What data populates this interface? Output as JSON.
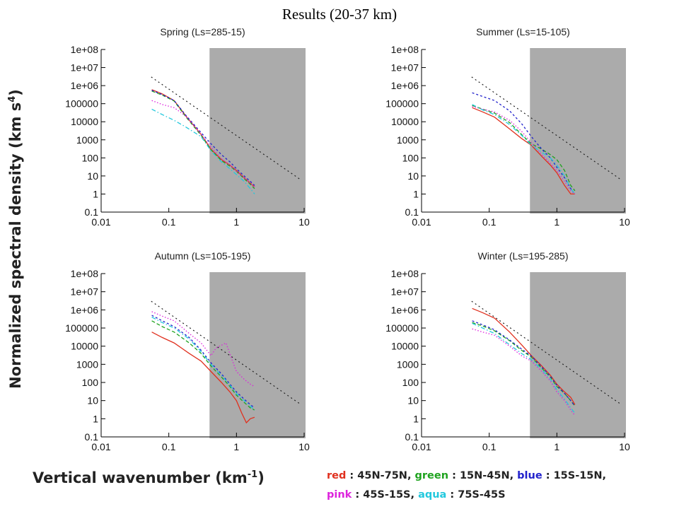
{
  "slide_title": "Results (20-37 km)",
  "ylabel_main": "Normalized spectral density (km s",
  "ylabel_sup": "4",
  "ylabel_end": ")",
  "xlabel_main": "Vertical wavenumber (km",
  "xlabel_sup": "-1",
  "xlabel_end": ")",
  "legend": {
    "line1": [
      {
        "color_name": "red",
        "range": "45N-75N",
        "sep": ", "
      },
      {
        "color_name": "green",
        "range": "15N-45N",
        "sep": ", "
      },
      {
        "color_name": "blue",
        "range": "15S-15N",
        "sep": ","
      }
    ],
    "line2": [
      {
        "color_name": "pink",
        "range": "45S-15S",
        "sep": ", "
      },
      {
        "color_name": "aqua",
        "range": "75S-45S",
        "sep": ""
      }
    ]
  },
  "colors": {
    "red": "#e0301e",
    "green": "#1fa31f",
    "blue": "#2222cc",
    "pink": "#dd22dd",
    "aqua": "#22c8dd",
    "shade": "#ababab",
    "reference_line": "#222222"
  },
  "chart_data": [
    {
      "type": "line",
      "title": "Spring (Ls=285-15)",
      "xscale": "log",
      "yscale": "log",
      "xlim": [
        0.01,
        10
      ],
      "ylim": [
        0.1,
        100000000
      ],
      "xticks": [
        "0.01",
        "0.1",
        "1",
        "10"
      ],
      "yticks": [
        "0.1",
        "1",
        "10",
        "100",
        "1000",
        "10000",
        "100000",
        "1e+06",
        "1e+07",
        "1e+08"
      ],
      "shaded_x_range": [
        0.4,
        10
      ],
      "reference_line": {
        "style": "dotted",
        "x": [
          0.055,
          9
        ],
        "y": [
          3000000,
          6
        ]
      },
      "series": [
        {
          "color": "red",
          "x": [
            0.056,
            0.08,
            0.12,
            0.18,
            0.3,
            0.42,
            0.6,
            0.8,
            1.0,
            1.3,
            1.6,
            1.85
          ],
          "y": [
            600000,
            350000,
            150000,
            20000,
            2000,
            300,
            80,
            40,
            20,
            8,
            4,
            2.5
          ]
        },
        {
          "color": "green",
          "x": [
            0.056,
            0.08,
            0.12,
            0.18,
            0.3,
            0.42,
            0.6,
            0.8,
            1.0,
            1.3,
            1.6,
            1.85
          ],
          "y": [
            500000,
            300000,
            140000,
            18000,
            1800,
            280,
            70,
            35,
            18,
            7,
            3.5,
            2
          ]
        },
        {
          "color": "blue",
          "x": [
            0.056,
            0.08,
            0.12,
            0.18,
            0.3,
            0.42,
            0.6,
            0.8,
            1.0,
            1.3,
            1.6,
            1.85
          ],
          "y": [
            550000,
            320000,
            150000,
            22000,
            2500,
            600,
            150,
            60,
            25,
            10,
            5,
            3
          ]
        },
        {
          "color": "pink",
          "x": [
            0.056,
            0.08,
            0.12,
            0.18,
            0.3,
            0.42,
            0.6,
            0.8,
            1.0,
            1.3,
            1.6,
            1.85
          ],
          "y": [
            150000,
            90000,
            60000,
            20000,
            2000,
            400,
            90,
            40,
            18,
            8,
            4,
            2.5
          ]
        },
        {
          "color": "aqua",
          "x": [
            0.056,
            0.08,
            0.12,
            0.18,
            0.3,
            0.42,
            0.6,
            0.8,
            1.0,
            1.3,
            1.6,
            1.85
          ],
          "y": [
            50000,
            25000,
            12000,
            5000,
            1500,
            250,
            60,
            25,
            12,
            5,
            2,
            1
          ]
        }
      ]
    },
    {
      "type": "line",
      "title": "Summer (Ls=15-105)",
      "xscale": "log",
      "yscale": "log",
      "xlim": [
        0.01,
        10
      ],
      "ylim": [
        0.1,
        100000000
      ],
      "xticks": [
        "0.01",
        "0.1",
        "1",
        "10"
      ],
      "yticks": [
        "0.1",
        "1",
        "10",
        "100",
        "1000",
        "10000",
        "100000",
        "1e+06",
        "1e+07",
        "1e+08"
      ],
      "shaded_x_range": [
        0.4,
        10
      ],
      "reference_line": {
        "style": "dotted",
        "x": [
          0.055,
          9
        ],
        "y": [
          3000000,
          6
        ]
      },
      "series": [
        {
          "color": "red",
          "x": [
            0.056,
            0.08,
            0.12,
            0.2,
            0.3,
            0.42,
            0.6,
            0.8,
            1.0,
            1.3,
            1.6,
            1.85
          ],
          "y": [
            60000,
            35000,
            18000,
            4000,
            1200,
            500,
            120,
            40,
            15,
            3,
            1,
            1
          ]
        },
        {
          "color": "green",
          "x": [
            0.056,
            0.08,
            0.12,
            0.2,
            0.3,
            0.42,
            0.6,
            0.8,
            1.0,
            1.3,
            1.6,
            1.85
          ],
          "y": [
            80000,
            50000,
            30000,
            9000,
            2000,
            600,
            300,
            150,
            80,
            20,
            3,
            1.5
          ]
        },
        {
          "color": "blue",
          "x": [
            0.056,
            0.08,
            0.12,
            0.2,
            0.3,
            0.42,
            0.6,
            0.8,
            1.0,
            1.3,
            1.6,
            1.85
          ],
          "y": [
            400000,
            250000,
            150000,
            40000,
            8000,
            1500,
            300,
            100,
            30,
            8,
            2,
            1
          ]
        },
        {
          "color": "pink",
          "x": [
            0.056,
            0.08,
            0.12,
            0.2,
            0.3,
            0.42,
            0.6,
            0.8,
            1.0,
            1.3,
            1.6,
            1.85
          ],
          "y": [
            70000,
            50000,
            35000,
            12000,
            3000,
            700,
            150,
            50,
            20,
            5,
            1.5,
            1
          ]
        },
        {
          "color": "aqua",
          "x": [
            0.056,
            0.08,
            0.12,
            0.2,
            0.3,
            0.42,
            0.6,
            0.8,
            1.0,
            1.3,
            1.6,
            1.85
          ],
          "y": [
            90000,
            45000,
            25000,
            7000,
            1800,
            500,
            200,
            100,
            40,
            10,
            2,
            1
          ]
        }
      ]
    },
    {
      "type": "line",
      "title": "Autumn (Ls=105-195)",
      "xscale": "log",
      "yscale": "log",
      "xlim": [
        0.01,
        10
      ],
      "ylim": [
        0.1,
        100000000
      ],
      "xticks": [
        "0.01",
        "0.1",
        "1",
        "10"
      ],
      "yticks": [
        "0.1",
        "1",
        "10",
        "100",
        "1000",
        "10000",
        "100000",
        "1e+06",
        "1e+07",
        "1e+08"
      ],
      "shaded_x_range": [
        0.4,
        10
      ],
      "reference_line": {
        "style": "dotted",
        "x": [
          0.055,
          9
        ],
        "y": [
          3000000,
          6
        ]
      },
      "series": [
        {
          "color": "red",
          "x": [
            0.056,
            0.08,
            0.12,
            0.2,
            0.3,
            0.42,
            0.6,
            0.8,
            1.0,
            1.2,
            1.4,
            1.6,
            1.85
          ],
          "y": [
            60000,
            30000,
            15000,
            4000,
            1500,
            400,
            100,
            30,
            10,
            2,
            0.6,
            1,
            1.2
          ]
        },
        {
          "color": "green",
          "x": [
            0.056,
            0.08,
            0.12,
            0.2,
            0.3,
            0.42,
            0.6,
            0.8,
            1.0,
            1.3,
            1.6,
            1.85
          ],
          "y": [
            250000,
            120000,
            60000,
            15000,
            4000,
            800,
            200,
            60,
            20,
            8,
            4,
            3
          ]
        },
        {
          "color": "blue",
          "x": [
            0.056,
            0.08,
            0.12,
            0.2,
            0.3,
            0.42,
            0.6,
            0.8,
            1.0,
            1.3,
            1.6,
            1.85
          ],
          "y": [
            500000,
            250000,
            120000,
            30000,
            6000,
            1200,
            300,
            80,
            30,
            12,
            6,
            4
          ]
        },
        {
          "color": "pink",
          "x": [
            0.056,
            0.08,
            0.12,
            0.2,
            0.3,
            0.42,
            0.5,
            0.7,
            0.85,
            1.0,
            1.3,
            1.6,
            1.85
          ],
          "y": [
            800000,
            450000,
            250000,
            50000,
            15000,
            3000,
            8000,
            15000,
            2000,
            400,
            150,
            80,
            60
          ]
        },
        {
          "color": "aqua",
          "x": [
            0.056,
            0.08,
            0.12,
            0.2,
            0.3,
            0.42,
            0.6,
            0.8,
            1.0,
            1.3,
            1.6,
            1.85
          ],
          "y": [
            400000,
            200000,
            100000,
            25000,
            5000,
            1000,
            250,
            70,
            25,
            10,
            5,
            3
          ]
        }
      ]
    },
    {
      "type": "line",
      "title": "Winter (Ls=195-285)",
      "xscale": "log",
      "yscale": "log",
      "xlim": [
        0.01,
        10
      ],
      "ylim": [
        0.1,
        100000000
      ],
      "xticks": [
        "0.01",
        "0.1",
        "1",
        "10"
      ],
      "yticks": [
        "0.1",
        "1",
        "10",
        "100",
        "1000",
        "10000",
        "100000",
        "1e+06",
        "1e+07",
        "1e+08"
      ],
      "shaded_x_range": [
        0.4,
        10
      ],
      "reference_line": {
        "style": "dotted",
        "x": [
          0.055,
          9
        ],
        "y": [
          3000000,
          6
        ]
      },
      "series": [
        {
          "color": "red",
          "x": [
            0.056,
            0.08,
            0.12,
            0.2,
            0.3,
            0.42,
            0.6,
            0.8,
            1.0,
            1.3,
            1.6,
            1.85
          ],
          "y": [
            1200000,
            700000,
            350000,
            60000,
            12000,
            3000,
            800,
            250,
            80,
            30,
            15,
            6
          ]
        },
        {
          "color": "green",
          "x": [
            0.056,
            0.08,
            0.12,
            0.2,
            0.3,
            0.42,
            0.6,
            0.8,
            1.0,
            1.3,
            1.6,
            1.85
          ],
          "y": [
            200000,
            130000,
            70000,
            20000,
            6000,
            2500,
            600,
            200,
            60,
            25,
            10,
            5
          ]
        },
        {
          "color": "blue",
          "x": [
            0.056,
            0.08,
            0.12,
            0.2,
            0.3,
            0.42,
            0.6,
            0.8,
            1.0,
            1.3,
            1.6,
            1.85
          ],
          "y": [
            250000,
            150000,
            80000,
            22000,
            7000,
            2800,
            700,
            220,
            70,
            25,
            10,
            5
          ]
        },
        {
          "color": "pink",
          "x": [
            0.056,
            0.08,
            0.12,
            0.2,
            0.3,
            0.42,
            0.6,
            0.8,
            1.0,
            1.3,
            1.6,
            1.85
          ],
          "y": [
            90000,
            60000,
            40000,
            10000,
            3000,
            1500,
            400,
            120,
            30,
            10,
            3,
            1.5
          ]
        },
        {
          "color": "aqua",
          "x": [
            0.056,
            0.08,
            0.12,
            0.2,
            0.3,
            0.42,
            0.6,
            0.8,
            1.0,
            1.3,
            1.6,
            1.85
          ],
          "y": [
            180000,
            100000,
            50000,
            12000,
            4000,
            1800,
            500,
            150,
            40,
            12,
            4,
            2
          ]
        }
      ]
    }
  ]
}
